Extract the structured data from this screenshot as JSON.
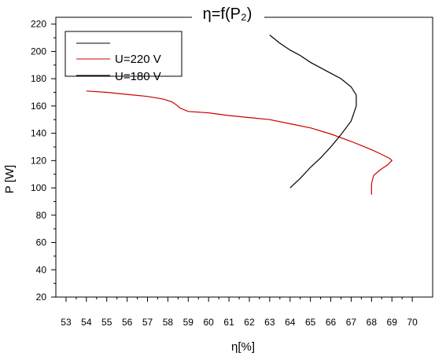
{
  "chart_data": {
    "type": "line",
    "title": "η=f(P₂)",
    "xlabel": "η[%]",
    "ylabel": "P [W]",
    "xlim": [
      52.5,
      71
    ],
    "ylim": [
      20,
      225
    ],
    "xticks": [
      53,
      54,
      55,
      56,
      57,
      58,
      59,
      60,
      61,
      62,
      63,
      64,
      65,
      66,
      67,
      68,
      69,
      70
    ],
    "yticks": [
      20,
      40,
      60,
      80,
      100,
      120,
      140,
      160,
      180,
      200,
      220
    ],
    "grid": false,
    "legend_position": "top-left",
    "legend_entries": [
      "",
      "U=220 V",
      "U=180 V"
    ],
    "series": [
      {
        "name": "U=220 V",
        "color": "#cc0000",
        "x": [
          54.0,
          55.0,
          56.0,
          57.0,
          57.8,
          58.2,
          58.4,
          58.6,
          59.0,
          60.0,
          61.0,
          62.0,
          63.0,
          64.0,
          65.0,
          66.0,
          67.0,
          67.5,
          68.0,
          68.5,
          68.9,
          69.0,
          68.8,
          68.4,
          68.1,
          68.0,
          68.0
        ],
        "y": [
          171,
          170,
          168.5,
          167,
          165,
          163,
          161,
          158.5,
          156,
          155,
          153,
          151.5,
          150,
          147,
          144,
          139.5,
          134,
          131,
          128,
          124.5,
          121.5,
          120,
          117,
          113,
          109,
          103,
          95
        ]
      },
      {
        "name": "U=180 V",
        "color": "#000000",
        "x": [
          64.0,
          64.5,
          65.0,
          65.5,
          66.0,
          66.5,
          67.0,
          67.25,
          67.25,
          67.0,
          66.5,
          66.0,
          65.5,
          65.0,
          64.5,
          64.0,
          63.5,
          63.0
        ],
        "y": [
          100,
          107,
          115,
          122,
          130,
          139,
          149,
          160,
          168,
          174,
          180,
          184,
          188,
          192,
          197,
          201,
          206,
          212
        ]
      }
    ]
  }
}
